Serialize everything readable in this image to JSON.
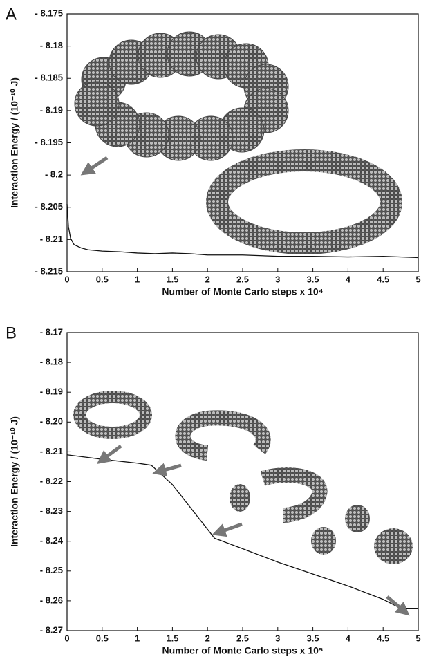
{
  "chart_data": [
    {
      "type": "line",
      "panel_label": "A",
      "xlabel": "Number of Monte Carlo steps x 10⁴",
      "ylabel": "Interaction Energy / (10⁻¹⁰ J)",
      "xlim": [
        0,
        5
      ],
      "xticks": [
        0,
        0.5,
        1,
        1.5,
        2,
        2.5,
        3,
        3.5,
        4,
        4.5,
        5
      ],
      "ylim": [
        -8.215,
        -8.175
      ],
      "yticks": [
        {
          "value": -8.175,
          "label": "- 8.175"
        },
        {
          "value": -8.18,
          "label": "- 8.18"
        },
        {
          "value": -8.185,
          "label": "- 8.185"
        },
        {
          "value": -8.19,
          "label": "- 8.19"
        },
        {
          "value": -8.195,
          "label": "- 8.195"
        },
        {
          "value": -8.2,
          "label": "- 8.2"
        },
        {
          "value": -8.205,
          "label": "- 8.205"
        },
        {
          "value": -8.21,
          "label": "- 8.21"
        },
        {
          "value": -8.215,
          "label": "- 8.215"
        }
      ],
      "x": [
        0,
        0.02,
        0.05,
        0.1,
        0.2,
        0.3,
        0.5,
        0.75,
        1,
        1.25,
        1.5,
        1.75,
        2,
        2.5,
        3,
        3.5,
        4,
        4.5,
        5
      ],
      "series": [
        {
          "color": "#111111",
          "values": [
            -8.2045,
            -8.208,
            -8.2098,
            -8.2108,
            -8.2113,
            -8.2116,
            -8.2118,
            -8.2119,
            -8.2121,
            -8.2122,
            -8.2121,
            -8.2122,
            -8.2124,
            -8.2124,
            -8.2126,
            -8.2126,
            -8.2127,
            -8.2126,
            -8.2128
          ]
        }
      ]
    },
    {
      "type": "line",
      "panel_label": "B",
      "xlabel": "Number of Monte Carlo steps x 10⁵",
      "ylabel": "Interaction Energy / (10⁻¹⁰ J)",
      "xlim": [
        0,
        5
      ],
      "xticks": [
        0,
        0.5,
        1,
        1.5,
        2,
        2.5,
        3,
        3.5,
        4,
        4.5,
        5
      ],
      "ylim": [
        -8.27,
        -8.17
      ],
      "yticks": [
        {
          "value": -8.17,
          "label": "- 8.17"
        },
        {
          "value": -8.18,
          "label": "- 8.18"
        },
        {
          "value": -8.19,
          "label": "- 8.19"
        },
        {
          "value": -8.2,
          "label": "- 8.20"
        },
        {
          "value": -8.21,
          "label": "- 8.21"
        },
        {
          "value": -8.22,
          "label": "- 8.22"
        },
        {
          "value": -8.23,
          "label": "- 8.23"
        },
        {
          "value": -8.24,
          "label": "- 8.24"
        },
        {
          "value": -8.25,
          "label": "- 8.25"
        },
        {
          "value": -8.26,
          "label": "- 8.26"
        },
        {
          "value": -8.27,
          "label": "- 8.27"
        }
      ],
      "x": [
        0,
        0.5,
        1,
        1.2,
        1.5,
        1.8,
        2,
        2.1,
        2.5,
        3,
        3.5,
        4,
        4.5,
        4.75,
        5
      ],
      "series": [
        {
          "color": "#111111",
          "values": [
            -8.211,
            -8.2125,
            -8.2138,
            -8.2145,
            -8.221,
            -8.23,
            -8.236,
            -8.239,
            -8.2425,
            -8.247,
            -8.251,
            -8.255,
            -8.2595,
            -8.2625,
            -8.2625
          ]
        }
      ]
    }
  ]
}
